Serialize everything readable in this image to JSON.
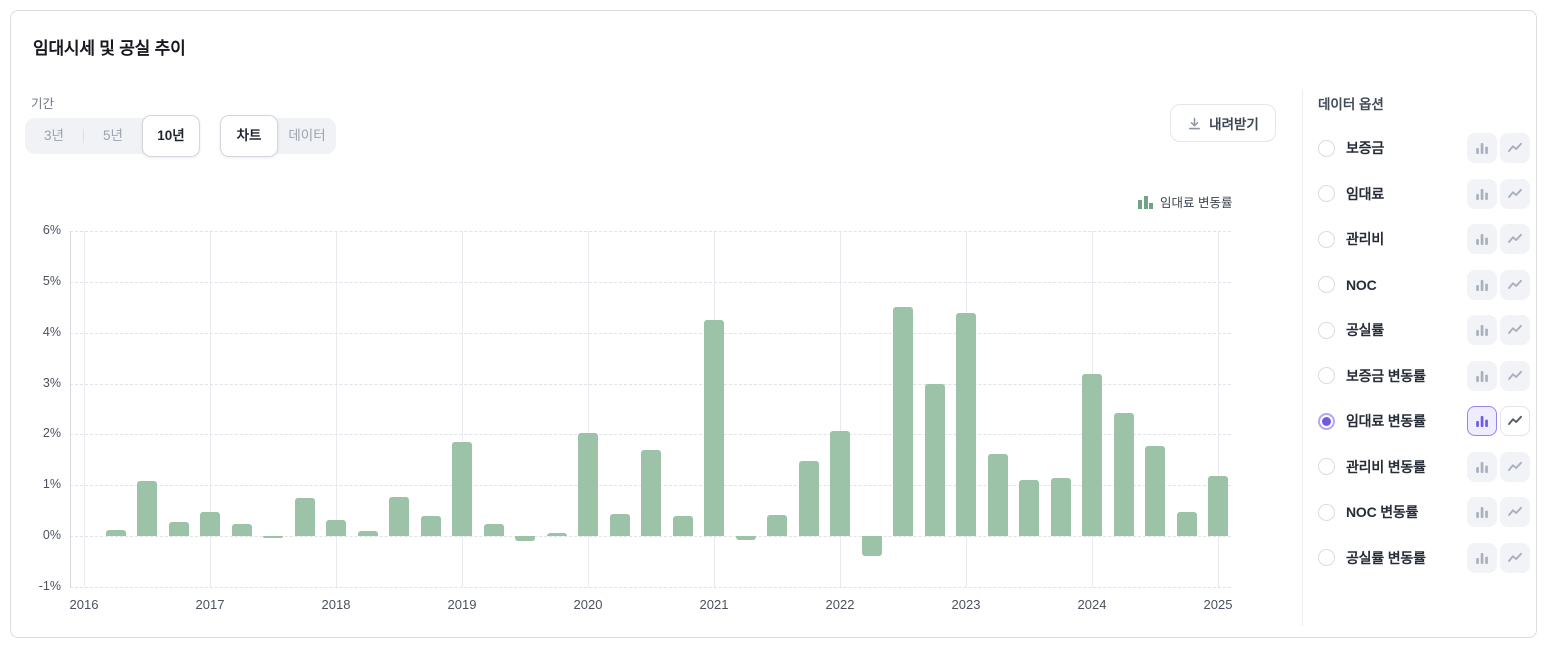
{
  "title": "임대시세 및 공실 추이",
  "controls": {
    "period_label": "기간",
    "periods": [
      {
        "label": "3년",
        "selected": false
      },
      {
        "label": "5년",
        "selected": false
      },
      {
        "label": "10년",
        "selected": true
      }
    ],
    "views": [
      {
        "label": "차트",
        "selected": true
      },
      {
        "label": "데이터",
        "selected": false
      }
    ],
    "download_label": "내려받기"
  },
  "legend": {
    "label": "임대료 변동률"
  },
  "data_options": {
    "header": "데이터 옵션",
    "items": [
      {
        "label": "보증금",
        "selected": false,
        "enabled": false
      },
      {
        "label": "임대료",
        "selected": false,
        "enabled": false
      },
      {
        "label": "관리비",
        "selected": false,
        "enabled": false
      },
      {
        "label": "NOC",
        "selected": false,
        "enabled": false
      },
      {
        "label": "공실률",
        "selected": false,
        "enabled": false
      },
      {
        "label": "보증금 변동률",
        "selected": false,
        "enabled": false
      },
      {
        "label": "임대료 변동률",
        "selected": true,
        "enabled": true,
        "active_chart_type": "bar"
      },
      {
        "label": "관리비 변동률",
        "selected": false,
        "enabled": false
      },
      {
        "label": "NOC 변동률",
        "selected": false,
        "enabled": false
      },
      {
        "label": "공실률 변동률",
        "selected": false,
        "enabled": false
      }
    ]
  },
  "chart_data": {
    "type": "bar",
    "series_name": "임대료 변동률",
    "x_quarters": [
      "2016 Q2",
      "2016 Q3",
      "2016 Q4",
      "2017 Q1",
      "2017 Q2",
      "2017 Q3",
      "2017 Q4",
      "2018 Q1",
      "2018 Q2",
      "2018 Q3",
      "2018 Q4",
      "2019 Q1",
      "2019 Q2",
      "2019 Q3",
      "2019 Q4",
      "2020 Q1",
      "2020 Q2",
      "2020 Q3",
      "2020 Q4",
      "2021 Q1",
      "2021 Q2",
      "2021 Q3",
      "2021 Q4",
      "2022 Q1",
      "2022 Q2",
      "2022 Q3",
      "2022 Q4",
      "2023 Q1",
      "2023 Q2",
      "2023 Q3",
      "2023 Q4",
      "2024 Q1",
      "2024 Q2",
      "2024 Q3",
      "2024 Q4",
      "2025 Q1"
    ],
    "values": [
      0.12,
      1.08,
      0.27,
      0.47,
      0.23,
      -0.04,
      0.75,
      0.32,
      0.1,
      0.76,
      0.4,
      1.86,
      0.23,
      -0.1,
      0.07,
      2.02,
      0.43,
      1.7,
      0.4,
      4.25,
      -0.08,
      0.42,
      1.48,
      2.06,
      -0.4,
      4.5,
      3.0,
      4.38,
      1.62,
      1.1,
      1.15,
      3.18,
      2.42,
      1.78,
      0.48,
      1.18
    ],
    "year_ticks": [
      "2016",
      "2017",
      "2018",
      "2019",
      "2020",
      "2021",
      "2022",
      "2023",
      "2024",
      "2025"
    ],
    "y_tick_labels": [
      "6%",
      "5%",
      "4%",
      "3%",
      "2%",
      "1%",
      "0%",
      "-1%"
    ],
    "ylim": [
      -1,
      6
    ],
    "grid": {
      "horizontal": "dashed",
      "vertical": "solid-per-year"
    },
    "legend_position": "top-right",
    "bar_color": "#9cc2a8"
  },
  "colors": {
    "accent_purple": "#6c5ce7",
    "accent_purple_bg": "#efecfe",
    "bar_green": "#9cc2a8",
    "legend_icon_green": "#72a385",
    "disabled_icon": "#a9b1be",
    "plain_icon": "#555e6b"
  }
}
